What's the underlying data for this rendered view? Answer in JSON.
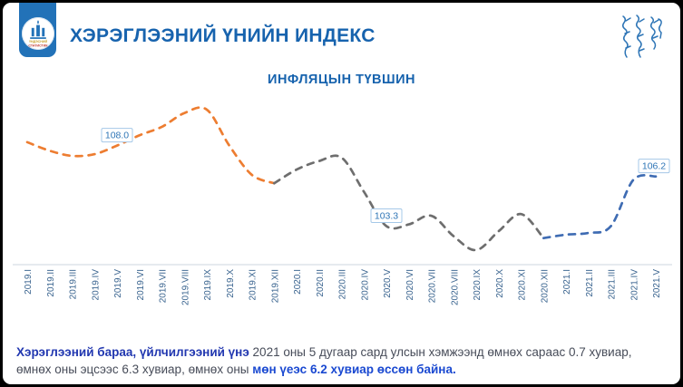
{
  "header": {
    "title": "ХЭРЭГЛЭЭНИЙ ҮНИЙН ИНДЕКС",
    "logo": {
      "text_line1": "ҮНДЭСНИЙ",
      "text_line2": "СТАТИСТИК"
    }
  },
  "chart": {
    "title": "ИНФЛЯЦЫН ТҮВШИН"
  },
  "chart_data": {
    "type": "line",
    "title": "ИНФЛЯЦЫН ТҮВШИН",
    "categories": [
      "2019.I",
      "2019.II",
      "2019.III",
      "2019.IV",
      "2019.V",
      "2019.VI",
      "2019.VII",
      "2019.VIII",
      "2019.IX",
      "2019.X",
      "2019.XI",
      "2019.XII",
      "2020.I",
      "2020.II",
      "2020.III",
      "2020.IV",
      "2020.V",
      "2020.VI",
      "2020.VII",
      "2020.VIII",
      "2020.IX",
      "2020.X",
      "2020.XI",
      "2020.XII",
      "2021.I",
      "2021.II",
      "2021.III",
      "2021.IV",
      "2021.V"
    ],
    "series": [
      {
        "name": "Инфляцын түвшин",
        "values": [
          108.2,
          107.7,
          107.4,
          107.5,
          108.0,
          108.6,
          109.1,
          109.9,
          110.1,
          108.0,
          106.3,
          105.8,
          106.6,
          107.1,
          107.3,
          105.3,
          103.3,
          103.4,
          103.9,
          102.7,
          101.9,
          103.0,
          104.0,
          102.6,
          102.8,
          102.9,
          103.3,
          106.0,
          106.2
        ]
      }
    ],
    "segments": [
      {
        "name": "2019",
        "from": 0,
        "to": 11,
        "color": "#ed7d31"
      },
      {
        "name": "2020",
        "from": 11,
        "to": 23,
        "color": "#6e6e6e"
      },
      {
        "name": "2021",
        "from": 23,
        "to": 28,
        "color": "#3f6cb3"
      }
    ],
    "data_labels": [
      {
        "index": 4,
        "label": "108.0"
      },
      {
        "index": 16,
        "label": "103.3"
      },
      {
        "index": 28,
        "label": "106.2"
      }
    ],
    "ylim": [
      101,
      111
    ],
    "grid": false,
    "legend": "none",
    "line_style": "dashed"
  },
  "footer": {
    "bold_lead": "Хэрэглээний бараа, үйлчилгээний үнэ",
    "text_mid": " 2021 оны 5 дугаар сард улсын хэмжээнд өмнөх сараас 0.7 хувиар, өмнөх оны эцсээс 6.3 хувиар, өмнөх оны ",
    "bold_tail": "мөн үеэс 6.2 хувиар өссөн байна."
  },
  "colors": {
    "accent_blue": "#1763ae",
    "header_tab": "#2272b8",
    "line_2019": "#ed7d31",
    "line_2020": "#6e6e6e",
    "line_2021": "#3f6cb3",
    "data_label_text": "#2e75b6",
    "data_label_border": "#a5c8e8",
    "tick_text": "#3a648f"
  }
}
